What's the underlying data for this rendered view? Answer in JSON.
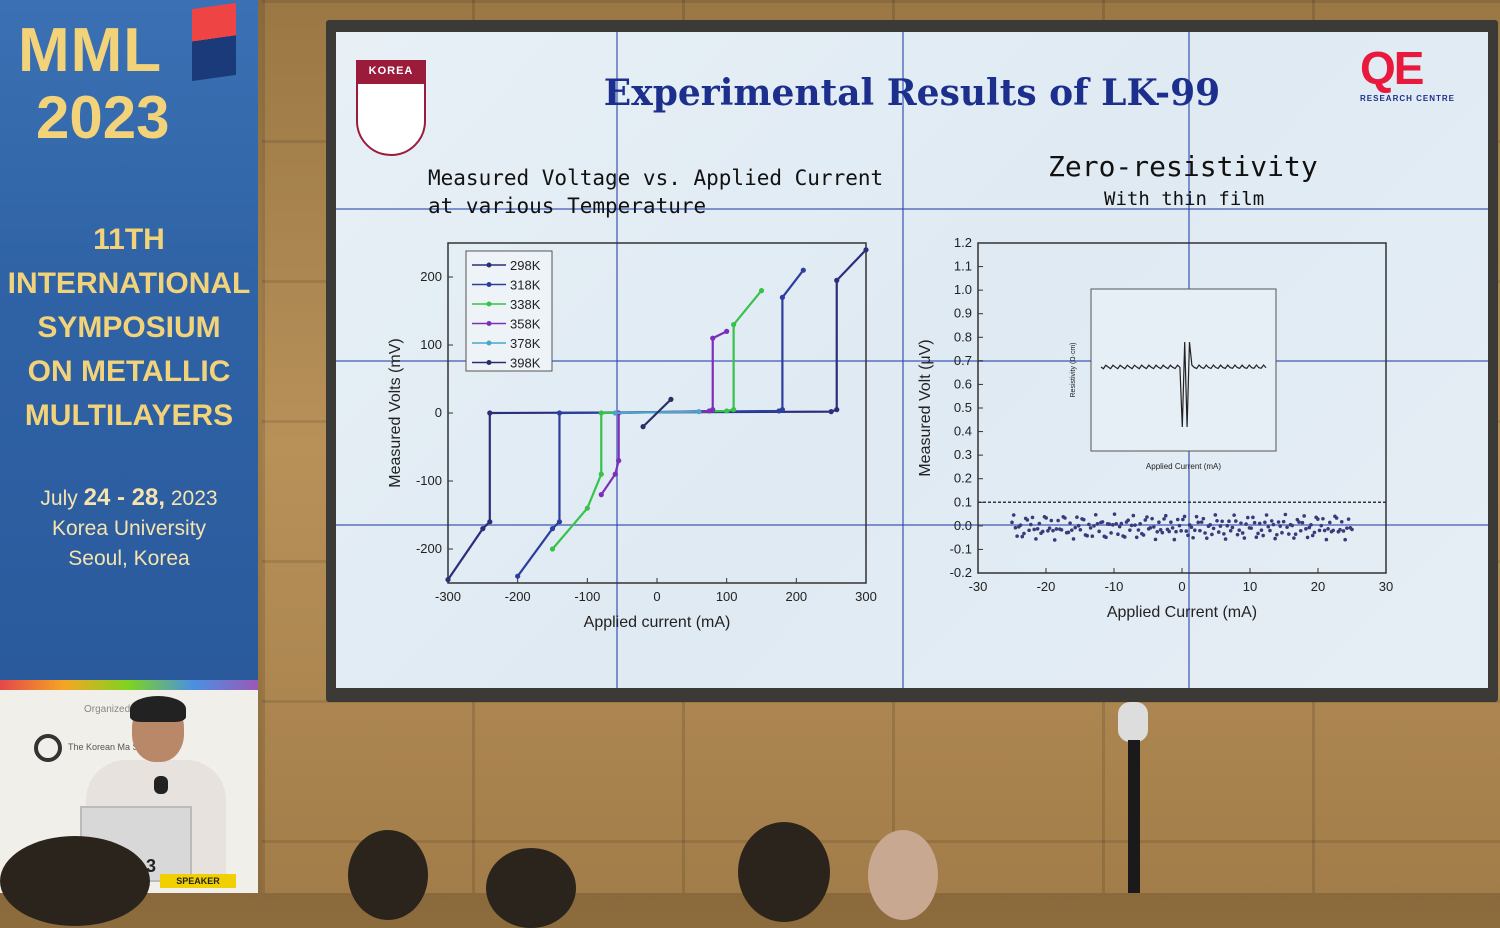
{
  "banner": {
    "title": "MML",
    "year": "2023",
    "symposium_lines": [
      "11TH",
      "INTERNATIONAL",
      "SYMPOSIUM",
      "ON METALLIC",
      "MULTILAYERS"
    ],
    "dates_prefix": "July",
    "dates_bold": "24 - 28,",
    "dates_year": "2023",
    "venue": "Korea University",
    "city": "Seoul, Korea"
  },
  "lectern": {
    "organizer": "Organized",
    "society": "The Korean Ma          Society",
    "badge": "SPEAKER",
    "number": "3"
  },
  "slide": {
    "title": "Experimental Results of LK-99",
    "ku_label": "KOREA",
    "qe_logo": "QE",
    "qe_sub": "RESEARCH CENTRE",
    "left_heading": [
      "Measured Voltage vs. Applied Current",
      "at various Temperature"
    ],
    "right_heading": "Zero-resistivity",
    "right_subheading": "With thin film"
  },
  "chart_data": [
    {
      "type": "line",
      "xlabel": "Applied current (mA)",
      "ylabel": "Measured Volts (mV)",
      "xlim": [
        -300,
        300
      ],
      "ylim": [
        -250,
        250
      ],
      "xticks": [
        -300,
        -200,
        -100,
        0,
        100,
        200,
        300
      ],
      "yticks": [
        -200,
        -100,
        0,
        100,
        200
      ],
      "legend": "top-left",
      "series": [
        {
          "name": "298K",
          "color": "#2b2f7a",
          "x": [
            -300,
            -250,
            -240,
            -240,
            250,
            258,
            258,
            300
          ],
          "y": [
            -245,
            -170,
            -160,
            0,
            2,
            5,
            195,
            240
          ]
        },
        {
          "name": "318K",
          "color": "#2d3e9e",
          "x": [
            -200,
            -150,
            -140,
            -140,
            175,
            180,
            180,
            210
          ],
          "y": [
            -240,
            -170,
            -160,
            0,
            3,
            5,
            170,
            210
          ]
        },
        {
          "name": "338K",
          "color": "#37c24a",
          "x": [
            -150,
            -100,
            -80,
            -80,
            100,
            110,
            110,
            150
          ],
          "y": [
            -200,
            -140,
            -90,
            0,
            3,
            5,
            130,
            180
          ]
        },
        {
          "name": "358K",
          "color": "#7d2fb8",
          "x": [
            -80,
            -60,
            -55,
            -55,
            75,
            80,
            80,
            100
          ],
          "y": [
            -120,
            -90,
            -70,
            0,
            3,
            5,
            110,
            120
          ]
        },
        {
          "name": "378K",
          "color": "#4aa5c9",
          "x": [
            -60,
            60
          ],
          "y": [
            0,
            2
          ]
        },
        {
          "name": "398K",
          "color": "#2a2f6a",
          "x": [
            -20,
            20
          ],
          "y": [
            -20,
            20
          ]
        }
      ]
    },
    {
      "type": "scatter",
      "xlabel": "Applied Current (mA)",
      "ylabel": "Measured Volt (μV)",
      "xlim": [
        -30,
        30
      ],
      "ylim": [
        -0.2,
        1.2
      ],
      "xticks": [
        -30,
        -20,
        -10,
        0,
        10,
        20,
        30
      ],
      "yticks": [
        -0.2,
        -0.1,
        0.0,
        0.1,
        0.2,
        0.3,
        0.4,
        0.5,
        0.6,
        0.7,
        0.8,
        0.9,
        1.0,
        1.1,
        1.2
      ],
      "reference_line": 0.1,
      "series": [
        {
          "color": "#3a3a7a",
          "x": [
            -25,
            25
          ],
          "y": [
            -0.05,
            0.05
          ]
        }
      ],
      "inset": {
        "xlabel": "Applied Current (mA)",
        "ylabel": "Resistivity (Ω·cm)"
      }
    }
  ]
}
